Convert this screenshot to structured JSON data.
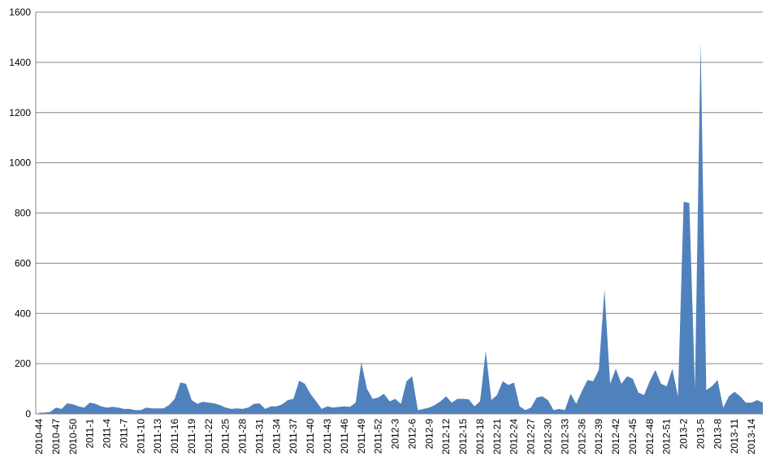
{
  "chart_data": {
    "type": "area",
    "color": "#4f81bd",
    "grid": true,
    "categories": [
      "2010-44",
      null,
      null,
      "2010-47",
      null,
      null,
      "2010-50",
      null,
      null,
      "2011-1",
      null,
      null,
      "2011-4",
      null,
      null,
      "2011-7",
      null,
      null,
      "2011-10",
      null,
      null,
      "2011-13",
      null,
      null,
      "2011-16",
      null,
      null,
      "2011-19",
      null,
      null,
      "2011-22",
      null,
      null,
      "2011-25",
      null,
      null,
      "2011-28",
      null,
      null,
      "2011-31",
      null,
      null,
      "2011-34",
      null,
      null,
      "2011-37",
      null,
      null,
      "2011-40",
      null,
      null,
      "2011-43",
      null,
      null,
      "2011-46",
      null,
      null,
      "2011-49",
      null,
      null,
      "2011-52",
      null,
      null,
      "2012-3",
      null,
      null,
      "2012-6",
      null,
      null,
      "2012-9",
      null,
      null,
      "2012-12",
      null,
      null,
      "2012-15",
      null,
      null,
      "2012-18",
      null,
      null,
      "2012-21",
      null,
      null,
      "2012-24",
      null,
      null,
      "2012-27",
      null,
      null,
      "2012-30",
      null,
      null,
      "2012-33",
      null,
      null,
      "2012-36",
      null,
      null,
      "2012-39",
      null,
      null,
      "2012-42",
      null,
      null,
      "2012-45",
      null,
      null,
      "2012-48",
      null,
      null,
      "2012-51",
      null,
      null,
      "2013-2",
      null,
      null,
      "2013-5",
      null,
      null,
      "2013-8",
      null,
      null,
      "2013-11",
      null,
      null,
      "2013-14",
      null,
      null
    ],
    "values": [
      5,
      5,
      8,
      25,
      20,
      42,
      38,
      30,
      25,
      45,
      40,
      30,
      25,
      28,
      25,
      20,
      20,
      15,
      15,
      25,
      22,
      22,
      22,
      35,
      60,
      125,
      120,
      55,
      40,
      48,
      45,
      42,
      35,
      25,
      20,
      22,
      20,
      25,
      40,
      42,
      20,
      30,
      30,
      38,
      55,
      60,
      132,
      120,
      80,
      50,
      20,
      30,
      25,
      28,
      30,
      28,
      45,
      205,
      100,
      60,
      65,
      80,
      50,
      60,
      40,
      130,
      150,
      15,
      20,
      25,
      35,
      50,
      70,
      45,
      60,
      60,
      58,
      30,
      50,
      250,
      55,
      75,
      130,
      115,
      125,
      30,
      15,
      25,
      65,
      70,
      55,
      15,
      20,
      15,
      80,
      40,
      90,
      135,
      130,
      175,
      495,
      120,
      180,
      120,
      150,
      140,
      85,
      75,
      130,
      175,
      120,
      110,
      180,
      70,
      845,
      840,
      100,
      1480,
      95,
      110,
      135,
      25,
      70,
      88,
      70,
      45,
      45,
      55,
      45
    ],
    "ylim": [
      0,
      1600
    ],
    "yticks": [
      0,
      200,
      400,
      600,
      800,
      1000,
      1200,
      1400,
      1600
    ]
  }
}
